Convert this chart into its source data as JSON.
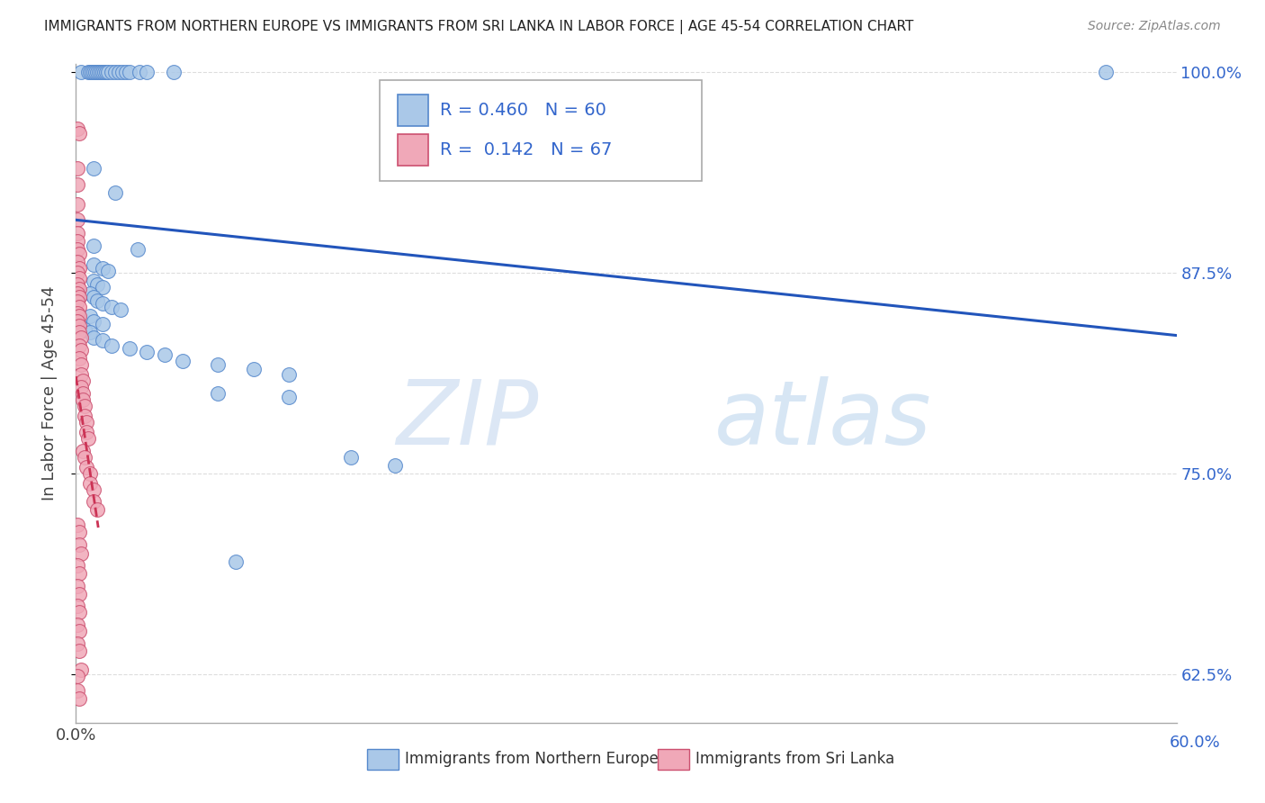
{
  "title": "IMMIGRANTS FROM NORTHERN EUROPE VS IMMIGRANTS FROM SRI LANKA IN LABOR FORCE | AGE 45-54 CORRELATION CHART",
  "source": "Source: ZipAtlas.com",
  "ylabel": "In Labor Force | Age 45-54",
  "xlim": [
    0.0,
    0.62
  ],
  "ylim": [
    0.595,
    1.005
  ],
  "yticks": [
    0.625,
    0.75,
    0.875,
    1.0
  ],
  "ytick_labels": [
    "62.5%",
    "75.0%",
    "87.5%",
    "100.0%"
  ],
  "blue_label": "Immigrants from Northern Europe",
  "pink_label": "Immigrants from Sri Lanka",
  "blue_R": 0.46,
  "blue_N": 60,
  "pink_R": 0.142,
  "pink_N": 67,
  "blue_color": "#aac8e8",
  "pink_color": "#f0a8b8",
  "blue_edge_color": "#5588cc",
  "pink_edge_color": "#cc5070",
  "blue_line_color": "#2255bb",
  "pink_line_color": "#cc3355",
  "blue_scatter": [
    [
      0.003,
      1.0
    ],
    [
      0.007,
      1.0
    ],
    [
      0.008,
      1.0
    ],
    [
      0.009,
      1.0
    ],
    [
      0.01,
      1.0
    ],
    [
      0.011,
      1.0
    ],
    [
      0.012,
      1.0
    ],
    [
      0.013,
      1.0
    ],
    [
      0.014,
      1.0
    ],
    [
      0.015,
      1.0
    ],
    [
      0.016,
      1.0
    ],
    [
      0.017,
      1.0
    ],
    [
      0.018,
      1.0
    ],
    [
      0.02,
      1.0
    ],
    [
      0.022,
      1.0
    ],
    [
      0.024,
      1.0
    ],
    [
      0.026,
      1.0
    ],
    [
      0.028,
      1.0
    ],
    [
      0.03,
      1.0
    ],
    [
      0.036,
      1.0
    ],
    [
      0.04,
      1.0
    ],
    [
      0.055,
      1.0
    ],
    [
      0.01,
      0.94
    ],
    [
      0.022,
      0.925
    ],
    [
      0.01,
      0.88
    ],
    [
      0.015,
      0.878
    ],
    [
      0.018,
      0.876
    ],
    [
      0.01,
      0.87
    ],
    [
      0.012,
      0.868
    ],
    [
      0.015,
      0.866
    ],
    [
      0.008,
      0.862
    ],
    [
      0.01,
      0.86
    ],
    [
      0.012,
      0.858
    ],
    [
      0.015,
      0.856
    ],
    [
      0.02,
      0.854
    ],
    [
      0.025,
      0.852
    ],
    [
      0.008,
      0.848
    ],
    [
      0.01,
      0.845
    ],
    [
      0.015,
      0.843
    ],
    [
      0.005,
      0.84
    ],
    [
      0.008,
      0.838
    ],
    [
      0.01,
      0.835
    ],
    [
      0.015,
      0.833
    ],
    [
      0.02,
      0.83
    ],
    [
      0.03,
      0.828
    ],
    [
      0.04,
      0.826
    ],
    [
      0.05,
      0.824
    ],
    [
      0.06,
      0.82
    ],
    [
      0.08,
      0.818
    ],
    [
      0.1,
      0.815
    ],
    [
      0.12,
      0.812
    ],
    [
      0.08,
      0.8
    ],
    [
      0.12,
      0.798
    ],
    [
      0.155,
      0.76
    ],
    [
      0.18,
      0.755
    ],
    [
      0.09,
      0.695
    ],
    [
      0.58,
      1.0
    ],
    [
      0.01,
      0.892
    ],
    [
      0.035,
      0.89
    ]
  ],
  "pink_scatter": [
    [
      0.001,
      0.965
    ],
    [
      0.002,
      0.962
    ],
    [
      0.001,
      0.94
    ],
    [
      0.001,
      0.93
    ],
    [
      0.001,
      0.918
    ],
    [
      0.001,
      0.908
    ],
    [
      0.001,
      0.9
    ],
    [
      0.001,
      0.895
    ],
    [
      0.001,
      0.89
    ],
    [
      0.002,
      0.887
    ],
    [
      0.001,
      0.882
    ],
    [
      0.002,
      0.878
    ],
    [
      0.001,
      0.875
    ],
    [
      0.002,
      0.872
    ],
    [
      0.001,
      0.868
    ],
    [
      0.002,
      0.865
    ],
    [
      0.001,
      0.862
    ],
    [
      0.002,
      0.86
    ],
    [
      0.001,
      0.857
    ],
    [
      0.002,
      0.854
    ],
    [
      0.001,
      0.85
    ],
    [
      0.002,
      0.848
    ],
    [
      0.001,
      0.845
    ],
    [
      0.002,
      0.842
    ],
    [
      0.002,
      0.838
    ],
    [
      0.003,
      0.835
    ],
    [
      0.002,
      0.83
    ],
    [
      0.003,
      0.827
    ],
    [
      0.002,
      0.822
    ],
    [
      0.003,
      0.818
    ],
    [
      0.003,
      0.812
    ],
    [
      0.004,
      0.808
    ],
    [
      0.003,
      0.804
    ],
    [
      0.004,
      0.8
    ],
    [
      0.004,
      0.796
    ],
    [
      0.005,
      0.792
    ],
    [
      0.005,
      0.786
    ],
    [
      0.006,
      0.782
    ],
    [
      0.006,
      0.776
    ],
    [
      0.007,
      0.772
    ],
    [
      0.004,
      0.764
    ],
    [
      0.005,
      0.76
    ],
    [
      0.006,
      0.754
    ],
    [
      0.008,
      0.75
    ],
    [
      0.008,
      0.744
    ],
    [
      0.01,
      0.74
    ],
    [
      0.01,
      0.733
    ],
    [
      0.012,
      0.728
    ],
    [
      0.001,
      0.718
    ],
    [
      0.002,
      0.714
    ],
    [
      0.002,
      0.706
    ],
    [
      0.003,
      0.7
    ],
    [
      0.001,
      0.693
    ],
    [
      0.002,
      0.688
    ],
    [
      0.001,
      0.68
    ],
    [
      0.002,
      0.675
    ],
    [
      0.001,
      0.668
    ],
    [
      0.002,
      0.664
    ],
    [
      0.001,
      0.656
    ],
    [
      0.002,
      0.652
    ],
    [
      0.001,
      0.644
    ],
    [
      0.002,
      0.64
    ],
    [
      0.003,
      0.628
    ],
    [
      0.001,
      0.624
    ],
    [
      0.001,
      0.615
    ],
    [
      0.002,
      0.61
    ]
  ],
  "watermark_zip": "ZIP",
  "watermark_atlas": "atlas",
  "background_color": "#ffffff",
  "grid_color": "#dddddd"
}
